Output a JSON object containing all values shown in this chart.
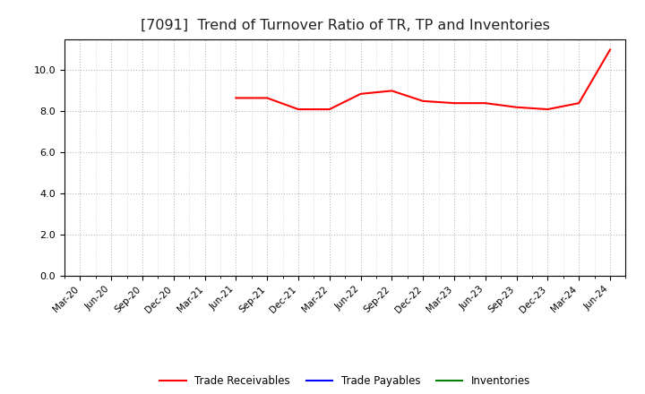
{
  "title": "[7091]  Trend of Turnover Ratio of TR, TP and Inventories",
  "x_labels": [
    "Mar-20",
    "Jun-20",
    "Sep-20",
    "Dec-20",
    "Mar-21",
    "Jun-21",
    "Sep-21",
    "Dec-21",
    "Mar-22",
    "Jun-22",
    "Sep-22",
    "Dec-22",
    "Mar-23",
    "Jun-23",
    "Sep-23",
    "Dec-23",
    "Mar-24",
    "Jun-24"
  ],
  "trade_receivables": [
    null,
    null,
    null,
    null,
    null,
    8.65,
    8.65,
    8.1,
    8.1,
    8.85,
    9.0,
    8.5,
    8.4,
    8.4,
    8.2,
    8.1,
    8.4,
    11.0
  ],
  "trade_payables": [],
  "inventories": [],
  "ylim": [
    0,
    11.5
  ],
  "yticks": [
    0.0,
    2.0,
    4.0,
    6.0,
    8.0,
    10.0
  ],
  "line_colors": {
    "trade_receivables": "#FF0000",
    "trade_payables": "#0000FF",
    "inventories": "#008000"
  },
  "legend_labels": [
    "Trade Receivables",
    "Trade Payables",
    "Inventories"
  ],
  "background_color": "#FFFFFF",
  "grid_color": "#BBBBBB",
  "title_fontsize": 11.5
}
